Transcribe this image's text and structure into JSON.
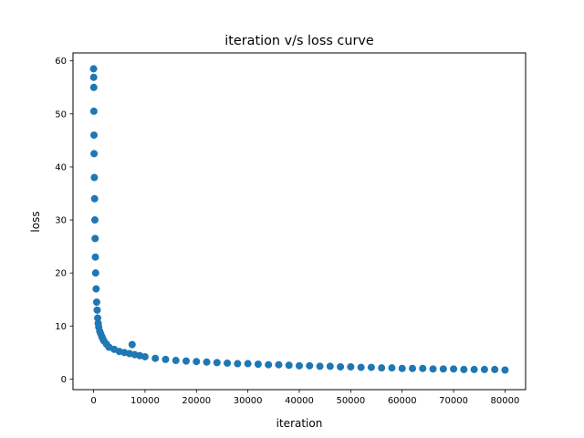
{
  "chart_data": {
    "type": "scatter",
    "title": "iteration v/s loss curve",
    "xlabel": "iteration",
    "ylabel": "loss",
    "xlim": [
      -4000,
      84000
    ],
    "ylim": [
      -2.0,
      61.5
    ],
    "xticks": [
      0,
      10000,
      20000,
      30000,
      40000,
      50000,
      60000,
      70000,
      80000
    ],
    "xtick_labels": [
      "0",
      "10000",
      "20000",
      "30000",
      "40000",
      "50000",
      "60000",
      "70000",
      "80000"
    ],
    "yticks": [
      0,
      10,
      20,
      30,
      40,
      50,
      60
    ],
    "ytick_labels": [
      "0",
      "10",
      "20",
      "30",
      "40",
      "50",
      "60"
    ],
    "grid": false,
    "legend": "none",
    "marker_color": "#1f77b4",
    "series": [
      {
        "x": [
          0,
          20,
          40,
          60,
          80,
          100,
          150,
          200,
          250,
          300,
          350,
          400,
          500,
          600,
          700,
          800,
          900,
          1000,
          1200,
          1400,
          1600,
          1800,
          2000,
          2500,
          3000,
          4000,
          5000,
          6000,
          7000,
          7500,
          8000,
          9000,
          10000,
          12000,
          14000,
          16000,
          18000,
          20000,
          22000,
          24000,
          26000,
          28000,
          30000,
          32000,
          34000,
          36000,
          38000,
          40000,
          42000,
          44000,
          46000,
          48000,
          50000,
          52000,
          54000,
          56000,
          58000,
          60000,
          62000,
          64000,
          66000,
          68000,
          70000,
          72000,
          74000,
          76000,
          78000,
          80000
        ],
        "y": [
          58.5,
          56.9,
          55.0,
          50.5,
          46.0,
          42.5,
          38.0,
          34.0,
          30.0,
          26.5,
          23.0,
          20.0,
          17.0,
          14.5,
          13.0,
          11.5,
          10.5,
          9.8,
          9.0,
          8.5,
          8.0,
          7.6,
          7.2,
          6.6,
          6.0,
          5.6,
          5.2,
          5.0,
          4.8,
          6.5,
          4.6,
          4.4,
          4.2,
          3.9,
          3.7,
          3.5,
          3.4,
          3.3,
          3.2,
          3.1,
          3.0,
          2.9,
          2.9,
          2.8,
          2.7,
          2.7,
          2.6,
          2.5,
          2.5,
          2.4,
          2.4,
          2.3,
          2.3,
          2.2,
          2.2,
          2.1,
          2.1,
          2.0,
          2.0,
          2.0,
          1.9,
          1.9,
          1.9,
          1.8,
          1.8,
          1.8,
          1.8,
          1.7
        ]
      }
    ]
  }
}
